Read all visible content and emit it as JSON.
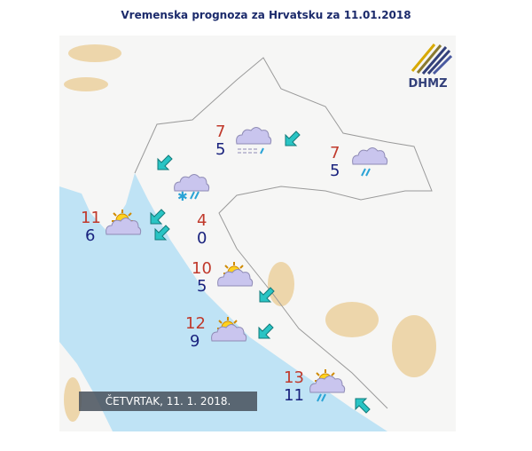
{
  "title": "Vremenska prognoza za Hrvatsku za 11.01.2018",
  "logo": "DHMZ",
  "date_label": "ČETVRTAK, 11. 1. 2018.",
  "colors": {
    "sea": "#bfe3f5",
    "land": "#f7f7f7",
    "max": "#c0392b",
    "min": "#1a237e",
    "arrow": "#29c4c4"
  },
  "stations": [
    {
      "max": "7",
      "min": "5",
      "icon": "cloudy-fog-rain"
    },
    {
      "max": "7",
      "min": "5",
      "icon": "cloudy-rain"
    },
    {
      "max": "4",
      "min": "0",
      "icon": "cloudy-snow-rain"
    },
    {
      "max": "11",
      "min": "6",
      "icon": "partly-cloudy"
    },
    {
      "max": "10",
      "min": "5",
      "icon": "partly-cloudy"
    },
    {
      "max": "12",
      "min": "9",
      "icon": "partly-cloudy"
    },
    {
      "max": "13",
      "min": "11",
      "icon": "partly-cloudy-rain"
    }
  ],
  "wind_arrows": [
    "southwest",
    "southwest",
    "southwest",
    "southwest",
    "southwest",
    "southwest",
    "southwest",
    "southeast"
  ]
}
